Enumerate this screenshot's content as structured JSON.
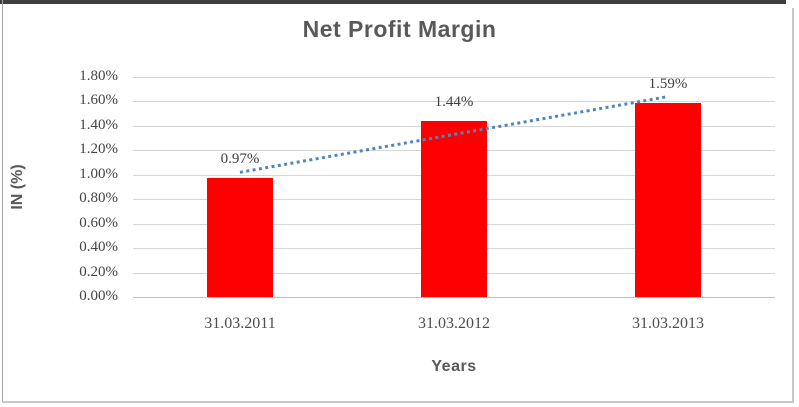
{
  "chart_data": {
    "type": "bar",
    "title": "Net Profit Margin",
    "xlabel": "Years",
    "ylabel": "IN (%)",
    "categories": [
      "31.03.2011",
      "31.03.2012",
      "31.03.2013"
    ],
    "values": [
      0.97,
      1.44,
      1.59
    ],
    "data_labels": [
      "0.97%",
      "1.44%",
      "1.59%"
    ],
    "ylim": [
      0,
      1.8
    ],
    "ytick_step": 0.2,
    "ytick_labels": [
      "1.80%",
      "1.60%",
      "1.40%",
      "1.20%",
      "1.00%",
      "0.80%",
      "0.60%",
      "0.40%",
      "0.20%",
      "0.00%"
    ],
    "grid": true,
    "legend": "none",
    "bar_color": "#ff0000",
    "trendline": {
      "type": "linear",
      "style": "dotted",
      "color": "#4e86c4",
      "start_value": 1.02,
      "end_value": 1.64
    }
  }
}
